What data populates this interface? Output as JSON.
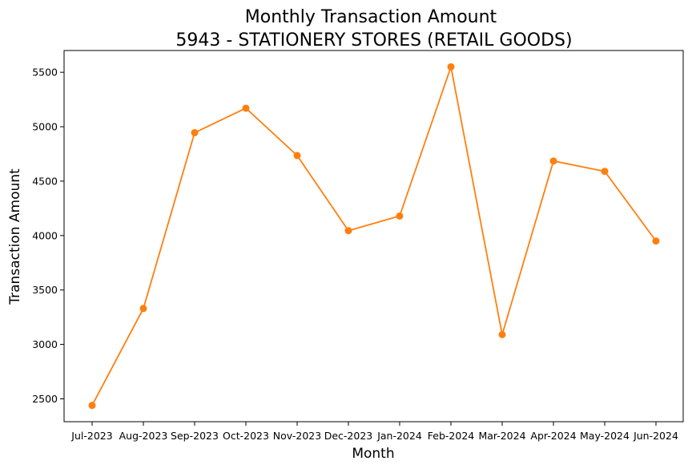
{
  "chart_data": {
    "type": "line",
    "title": "Monthly Transaction Amount",
    "subtitle": "5943 - STATIONERY STORES (RETAIL GOODS)",
    "xlabel": "Month",
    "ylabel": "Transaction Amount",
    "categories": [
      "Jul-2023",
      "Aug-2023",
      "Sep-2023",
      "Oct-2023",
      "Nov-2023",
      "Dec-2023",
      "Jan-2024",
      "Feb-2024",
      "Mar-2024",
      "Apr-2024",
      "May-2024",
      "Jun-2024"
    ],
    "series": [
      {
        "values": [
          2440,
          3330,
          4945,
          5170,
          4735,
          4045,
          4180,
          5550,
          3090,
          4685,
          4590,
          3950
        ],
        "color": "#ff7f0e",
        "marker": "circle"
      }
    ],
    "yticks": [
      2500,
      3000,
      3500,
      4000,
      4500,
      5000,
      5500
    ],
    "ylim": [
      2290,
      5700
    ],
    "grid": false,
    "legend": "none"
  }
}
